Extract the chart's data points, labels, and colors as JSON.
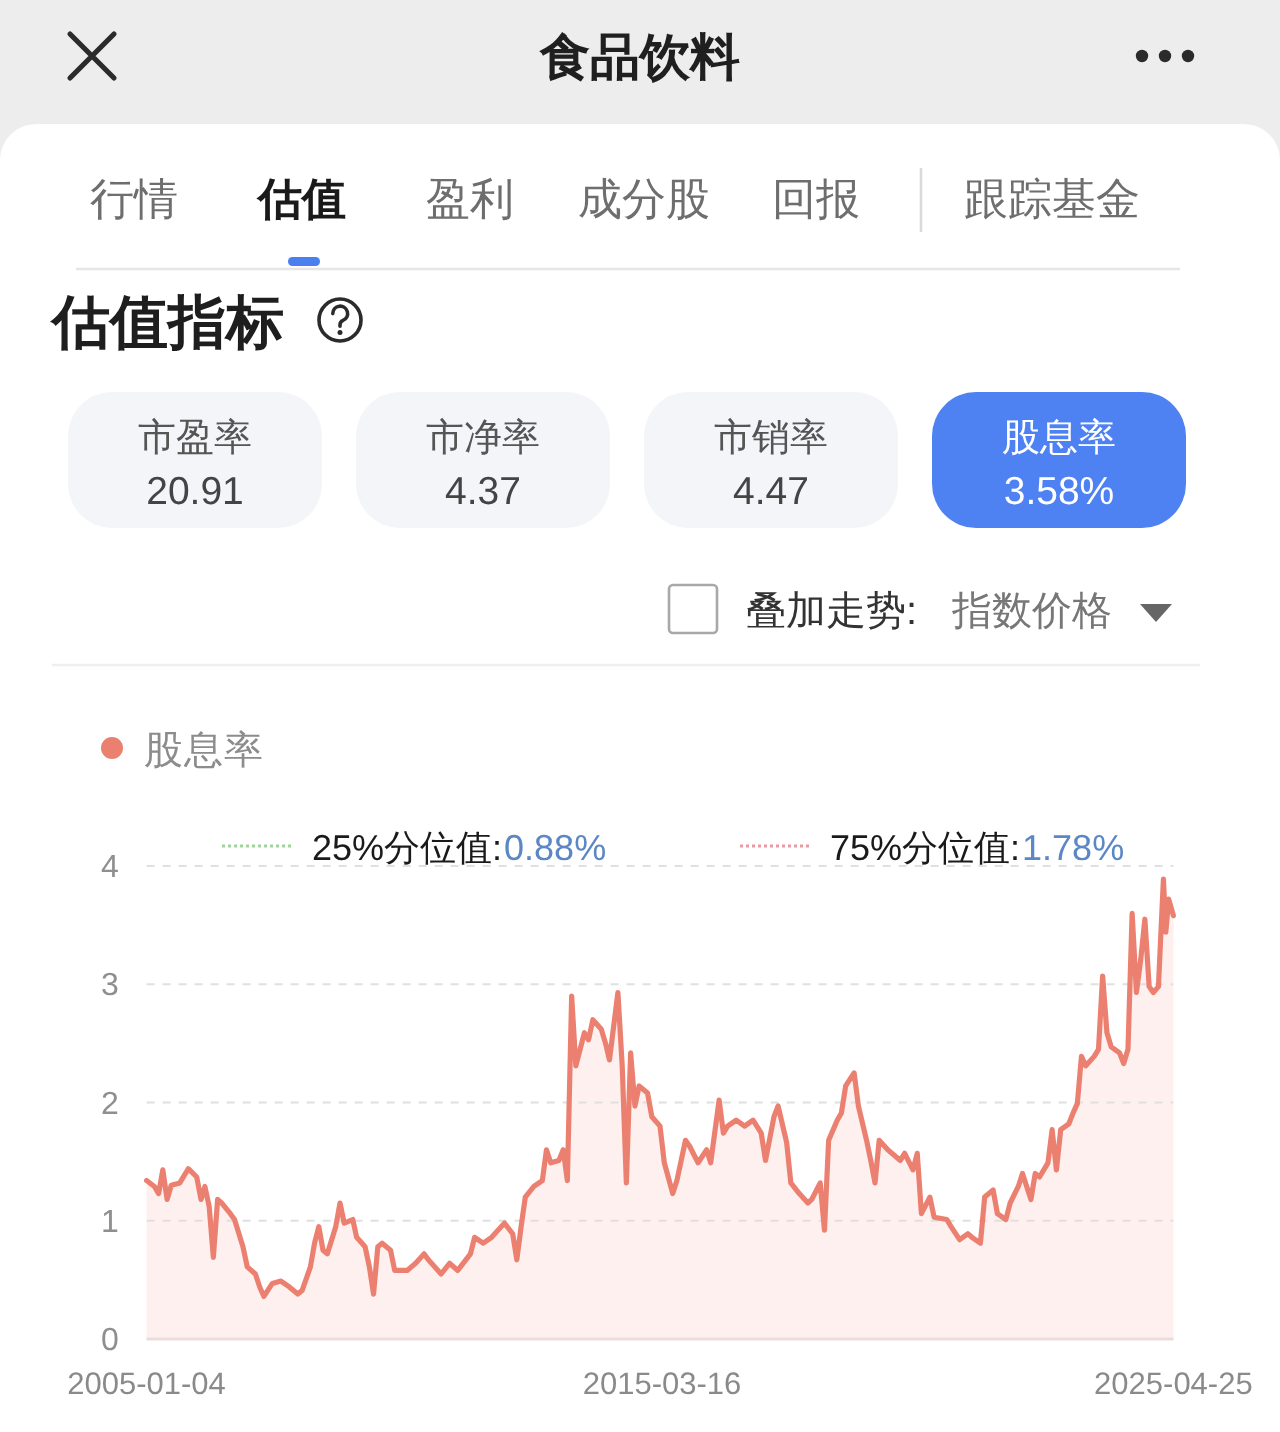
{
  "chart_data": [
    {
      "type": "other",
      "title": "食品饮料",
      "annotations": [
        "行情",
        "估值",
        "盈利",
        "成分股",
        "回报",
        "跟踪基金",
        "估值指标",
        "市盈率",
        "20.91",
        "市净率",
        "4.37",
        "市销率",
        "4.47",
        "股息率",
        "3.58%",
        "叠加走势:",
        "指数价格"
      ]
    },
    {
      "type": "area",
      "legend": "top left",
      "grid": "y",
      "xlim": [
        "2005-01-04",
        "2025-04-25"
      ],
      "xticks": [
        {
          "value": "2005-01-04",
          "label": "2005-01-04"
        },
        {
          "value": "2015-03-16",
          "label": "2015-03-16"
        },
        {
          "value": "2025-04-25",
          "label": "2025-04-25"
        }
      ],
      "ylim": [
        0,
        4
      ],
      "yticks": [
        0,
        1,
        2,
        3,
        4
      ],
      "annotations": [
        "25%分位值:",
        "0.88%",
        "75%分位值:",
        "1.78%"
      ],
      "x": [
        "2005-01-04",
        "2005-03",
        "2005-04",
        "2005-05",
        "2005-06",
        "2005-07",
        "2005-09",
        "2005-11",
        "2006-01",
        "2006-02",
        "2006-03",
        "2006-04",
        "2006-05",
        "2006-06",
        "2006-07",
        "2006-09",
        "2006-10",
        "2006-12",
        "2007-01",
        "2007-03",
        "2007-04",
        "2007-05",
        "2007-07",
        "2007-09",
        "2007-11",
        "2008-01",
        "2008-02",
        "2008-04",
        "2008-05",
        "2008-06",
        "2008-07",
        "2008-08",
        "2008-10",
        "2008-11",
        "2008-12",
        "2009-02",
        "2009-03",
        "2009-05",
        "2009-06",
        "2009-07",
        "2009-08",
        "2009-09",
        "2009-11",
        "2009-12",
        "2010-03",
        "2010-05",
        "2010-07",
        "2010-08",
        "2010-11",
        "2011-01",
        "2011-03",
        "2011-06",
        "2011-07",
        "2011-09",
        "2011-11",
        "2012-02",
        "2012-04",
        "2012-05",
        "2012-06",
        "2012-07",
        "2012-09",
        "2012-11",
        "2012-12",
        "2013-01",
        "2013-03",
        "2013-04",
        "2013-05",
        "2013-06",
        "2013-07",
        "2013-09",
        "2013-10",
        "2013-11",
        "2014-01",
        "2014-02",
        "2014-03",
        "2014-05",
        "2014-06",
        "2014-07",
        "2014-08",
        "2014-09",
        "2014-10",
        "2014-12",
        "2015-01",
        "2015-03",
        "2015-04",
        "2015-06",
        "2015-07",
        "2015-09",
        "2015-10",
        "2015-12",
        "2016-02",
        "2016-03",
        "2016-05",
        "2016-06",
        "2016-07",
        "2016-09",
        "2016-11",
        "2017-01",
        "2017-03",
        "2017-04",
        "2017-06",
        "2017-07",
        "2017-09",
        "2017-10",
        "2017-12",
        "2018-02",
        "2018-03",
        "2018-05",
        "2018-06",
        "2018-07",
        "2018-09",
        "2018-10",
        "2018-11",
        "2019-01",
        "2019-02",
        "2019-04",
        "2019-05",
        "2019-06",
        "2019-07",
        "2019-09",
        "2019-12",
        "2020-01",
        "2020-03",
        "2020-04",
        "2020-05",
        "2020-07",
        "2020-08",
        "2020-11",
        "2020-12",
        "2021-02",
        "2021-04",
        "2021-05",
        "2021-07",
        "2021-08",
        "2021-10",
        "2021-11",
        "2022-01",
        "2022-02",
        "2022-04",
        "2022-05",
        "2022-07",
        "2022-08",
        "2022-09",
        "2022-11",
        "2022-12",
        "2023-01",
        "2023-02",
        "2023-04",
        "2023-05",
        "2023-06",
        "2023-07",
        "2023-08",
        "2023-10",
        "2023-11",
        "2023-12",
        "2024-01",
        "2024-02",
        "2024-04",
        "2024-05",
        "2024-06",
        "2024-07",
        "2024-08",
        "2024-09",
        "2024-10",
        "2024-11",
        "2024-12",
        "2025-01-07",
        "2025-01-25",
        "2025-02-12",
        "2025-03-01",
        "2025-03-22",
        "2025-04-25"
      ],
      "series": [
        {
          "name": "股息率",
          "color": "#ec8070",
          "values": [
            1.34,
            1.29,
            1.23,
            1.43,
            1.18,
            1.3,
            1.32,
            1.44,
            1.37,
            1.18,
            1.29,
            1.12,
            0.69,
            1.18,
            1.15,
            1.06,
            1.01,
            0.78,
            0.61,
            0.55,
            0.44,
            0.36,
            0.47,
            0.49,
            0.44,
            0.38,
            0.41,
            0.61,
            0.81,
            0.95,
            0.75,
            0.72,
            0.95,
            1.15,
            0.98,
            1.01,
            0.86,
            0.78,
            0.61,
            0.38,
            0.78,
            0.81,
            0.75,
            0.58,
            0.58,
            0.64,
            0.72,
            0.67,
            0.55,
            0.64,
            0.58,
            0.72,
            0.86,
            0.81,
            0.86,
            0.98,
            0.89,
            0.67,
            0.95,
            1.2,
            1.29,
            1.34,
            1.6,
            1.49,
            1.51,
            1.6,
            1.34,
            2.9,
            2.31,
            2.59,
            2.53,
            2.7,
            2.62,
            2.5,
            2.36,
            2.93,
            2.31,
            1.32,
            2.42,
            1.97,
            2.14,
            2.08,
            1.88,
            1.8,
            1.49,
            1.23,
            1.34,
            1.68,
            1.63,
            1.49,
            1.6,
            1.49,
            2.02,
            1.74,
            1.8,
            1.85,
            1.8,
            1.85,
            1.74,
            1.51,
            1.88,
            1.97,
            1.66,
            1.32,
            1.23,
            1.15,
            1.18,
            1.32,
            0.92,
            1.68,
            1.85,
            1.91,
            2.14,
            2.25,
            1.97,
            1.68,
            1.51,
            1.32,
            1.68,
            1.6,
            1.51,
            1.57,
            1.43,
            1.57,
            1.06,
            1.2,
            1.03,
            1.01,
            0.95,
            0.84,
            0.89,
            0.86,
            0.81,
            1.2,
            1.26,
            1.06,
            1.01,
            1.15,
            1.29,
            1.4,
            1.18,
            1.4,
            1.37,
            1.49,
            1.77,
            1.43,
            1.77,
            1.82,
            1.91,
            1.99,
            2.39,
            2.31,
            2.39,
            2.45,
            3.07,
            2.59,
            2.47,
            2.42,
            2.33,
            2.45,
            3.6,
            2.93,
            3.21,
            3.55,
            2.98,
            2.93,
            2.98,
            3.44,
            3.89,
            3.44,
            3.72,
            3.58
          ]
        }
      ]
    }
  ]
}
